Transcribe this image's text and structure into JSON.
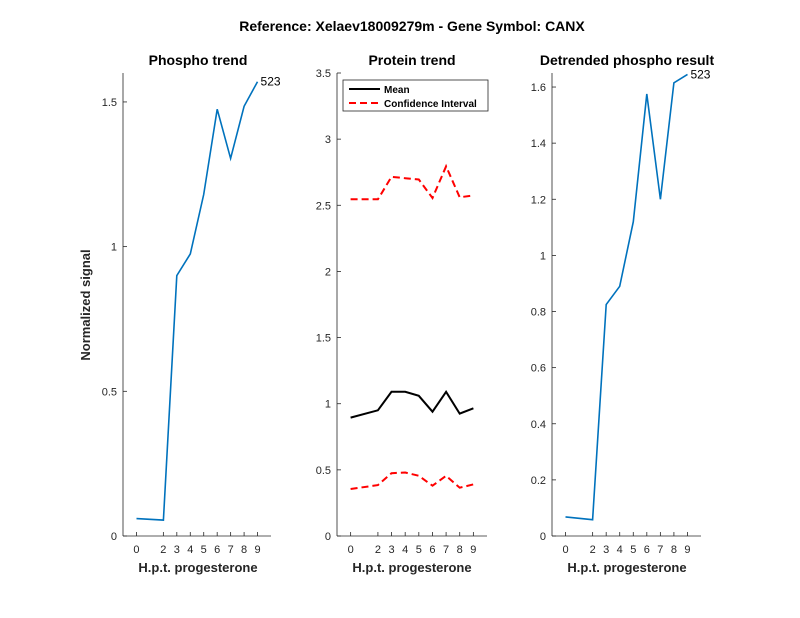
{
  "figure_title": "Reference:  Xelaev18009279m - Gene Symbol:  CANX",
  "chart_data": [
    {
      "type": "line",
      "title": "Phospho trend",
      "xlabel": "H.p.t. progesterone",
      "ylabel": "Normalized signal",
      "x": [
        0,
        2,
        3,
        4,
        5,
        6,
        7,
        8,
        9
      ],
      "xticks": [
        "0",
        "2",
        "3",
        "4",
        "5",
        "6",
        "7",
        "8",
        "9"
      ],
      "ylim": [
        0,
        1.6
      ],
      "yticks": [
        0,
        0.5,
        1,
        1.5
      ],
      "ytick_labels": [
        "0",
        "0.5",
        "1",
        "1.5"
      ],
      "series": [
        {
          "name": "Phospho",
          "color": "#0072BD",
          "dash": "solid",
          "values": [
            0.06,
            0.055,
            0.9,
            0.975,
            1.18,
            1.475,
            1.305,
            1.485,
            1.57
          ]
        }
      ],
      "annotation": "523"
    },
    {
      "type": "line",
      "title": "Protein trend",
      "xlabel": "H.p.t. progesterone",
      "ylabel": "",
      "x": [
        0,
        2,
        3,
        4,
        5,
        6,
        7,
        8,
        9
      ],
      "xticks": [
        "0",
        "2",
        "3",
        "4",
        "5",
        "6",
        "7",
        "8",
        "9"
      ],
      "ylim": [
        0,
        3.5
      ],
      "yticks": [
        0,
        0.5,
        1,
        1.5,
        2,
        2.5,
        3,
        3.5
      ],
      "ytick_labels": [
        "0",
        "0.5",
        "1",
        "1.5",
        "2",
        "2.5",
        "3",
        "3.5"
      ],
      "legend": {
        "position": "top-left",
        "entries": [
          "Mean",
          "Confidence Interval"
        ]
      },
      "series": [
        {
          "name": "Mean",
          "color": "#000000",
          "dash": "solid",
          "values": [
            0.895,
            0.95,
            1.09,
            1.09,
            1.06,
            0.94,
            1.09,
            0.925,
            0.965
          ]
        },
        {
          "name": "Confidence Interval",
          "color": "#FF0000",
          "dash": "dashed",
          "values": [
            2.545,
            2.545,
            2.715,
            2.705,
            2.695,
            2.555,
            2.795,
            2.56,
            2.575
          ]
        },
        {
          "name": "Confidence Interval",
          "color": "#FF0000",
          "dash": "dashed",
          "legend": false,
          "values": [
            0.355,
            0.385,
            0.475,
            0.48,
            0.455,
            0.38,
            0.455,
            0.365,
            0.39
          ]
        }
      ]
    },
    {
      "type": "line",
      "title": "Detrended phospho result",
      "xlabel": "H.p.t. progesterone",
      "ylabel": "",
      "x": [
        0,
        2,
        3,
        4,
        5,
        6,
        7,
        8,
        9
      ],
      "xticks": [
        "0",
        "2",
        "3",
        "4",
        "5",
        "6",
        "7",
        "8",
        "9"
      ],
      "ylim": [
        0,
        1.65
      ],
      "yticks": [
        0,
        0.2,
        0.4,
        0.6,
        0.8,
        1,
        1.2,
        1.4,
        1.6
      ],
      "ytick_labels": [
        "0",
        "0.2",
        "0.4",
        "0.6",
        "0.8",
        "1",
        "1.2",
        "1.4",
        "1.6"
      ],
      "series": [
        {
          "name": "Detrended",
          "color": "#0072BD",
          "dash": "solid",
          "values": [
            0.068,
            0.058,
            0.825,
            0.89,
            1.12,
            1.575,
            1.2,
            1.615,
            1.645
          ]
        }
      ],
      "annotation": "523"
    }
  ]
}
